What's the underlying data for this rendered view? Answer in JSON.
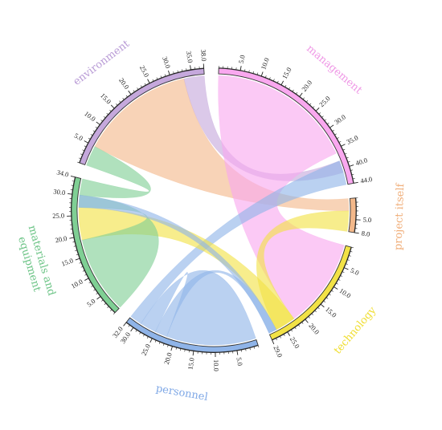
{
  "chart_data": {
    "type": "chord",
    "title": "",
    "groups": [
      {
        "name": "management",
        "total": 44,
        "color": "#f9a8ef",
        "label_color": "#ef98e6",
        "ticks": [
          5,
          10,
          15,
          20,
          25,
          30,
          35,
          40,
          44
        ],
        "label_lines": [
          "management"
        ]
      },
      {
        "name": "project itself",
        "total": 8,
        "color": "#f3b88a",
        "label_color": "#f0ad78",
        "ticks": [
          5,
          8
        ],
        "label_lines": [
          "project itself"
        ]
      },
      {
        "name": "technology",
        "total": 29,
        "color": "#f2e246",
        "label_color": "#f0de30",
        "ticks": [
          5,
          10,
          15,
          20,
          25,
          29
        ],
        "label_lines": [
          "technology"
        ]
      },
      {
        "name": "personnel",
        "total": 32,
        "color": "#8fb4e8",
        "label_color": "#7fa8e6",
        "ticks": [
          5,
          10,
          15,
          20,
          25,
          30,
          32
        ],
        "label_lines": [
          "personnel"
        ]
      },
      {
        "name": "materials and equipment",
        "total": 34,
        "color": "#7fcf94",
        "label_color": "#6cc486",
        "ticks": [
          5,
          10,
          15,
          20,
          25,
          30,
          34
        ],
        "label_lines": [
          "materials and",
          "equipment"
        ]
      },
      {
        "name": "environment",
        "total": 38,
        "color": "#c5a8dc",
        "label_color": "#b99bd6",
        "ticks": [
          5,
          10,
          15,
          20,
          25,
          30,
          35,
          38
        ],
        "label_lines": [
          "environment"
        ]
      }
    ],
    "tick_labels": {
      "management": [
        "5.0",
        "10.0",
        "15.0",
        "20.0",
        "25.0",
        "30.0",
        "35.0",
        "40.0",
        "44.0"
      ],
      "project itself": [
        "5.0",
        "8.0"
      ],
      "technology": [
        "5.0",
        "10.0",
        "15.0",
        "20.0",
        "25.0",
        "29.0"
      ],
      "personnel": [
        "5.0",
        "10.0",
        "15.0",
        "20.0",
        "25.0",
        "30.0",
        "32.0"
      ],
      "materials and equipment": [
        "5.0",
        "10.0",
        "15.0",
        "20.0",
        "25.0",
        "30.0",
        "34.0"
      ],
      "environment": [
        "5.0",
        "10.0",
        "15.0",
        "20.0",
        "25.0",
        "30.0",
        "35.0",
        "38.0"
      ]
    },
    "ribbons": [
      {
        "source": "environment",
        "source_range": [
          5,
          33
        ],
        "target": "project itself",
        "target_range": [
          0,
          3
        ],
        "color": "#f3b88a"
      },
      {
        "source": "environment",
        "source_range": [
          33,
          38
        ],
        "target": "management",
        "target_range": [
          38,
          41
        ],
        "color": "#c5a8dc"
      },
      {
        "source": "management",
        "source_range": [
          0,
          36
        ],
        "target": "technology",
        "target_range": [
          0,
          22
        ],
        "color": "#f9a8ef"
      },
      {
        "source": "management",
        "source_range": [
          38,
          44
        ],
        "target": "personnel",
        "target_range": [
          29,
          32
        ],
        "color": "#8fb4e8"
      },
      {
        "source": "technology",
        "source_range": [
          27,
          29
        ],
        "target": "personnel",
        "target_range": [
          22,
          25
        ],
        "color": "#8fb4e8"
      },
      {
        "source": "project itself",
        "source_range": [
          3,
          8
        ],
        "target": "technology",
        "target_range": [
          22,
          27
        ],
        "color": "#f2e246"
      },
      {
        "source": "technology",
        "source_range": [
          22,
          27
        ],
        "target": "materials and equipment",
        "target_range": [
          19,
          27
        ],
        "color": "#f2e246"
      },
      {
        "source": "materials and equipment",
        "source_range": [
          0,
          19
        ],
        "target": "materials and equipment",
        "target_range": [
          27,
          30
        ],
        "color": "#7fcf94"
      },
      {
        "source": "materials and equipment",
        "source_range": [
          30,
          34
        ],
        "target": "environment",
        "target_range": [
          0,
          5
        ],
        "color": "#7fcf94"
      },
      {
        "source": "personnel",
        "source_range": [
          0,
          22
        ],
        "target": "personnel",
        "target_range": [
          25,
          29
        ],
        "color": "#8fb4e8"
      },
      {
        "source": "materials and equipment",
        "source_range": [
          27,
          30
        ],
        "target": "technology",
        "target_range": [
          27,
          29
        ],
        "color": "#8fb4e8"
      }
    ]
  }
}
